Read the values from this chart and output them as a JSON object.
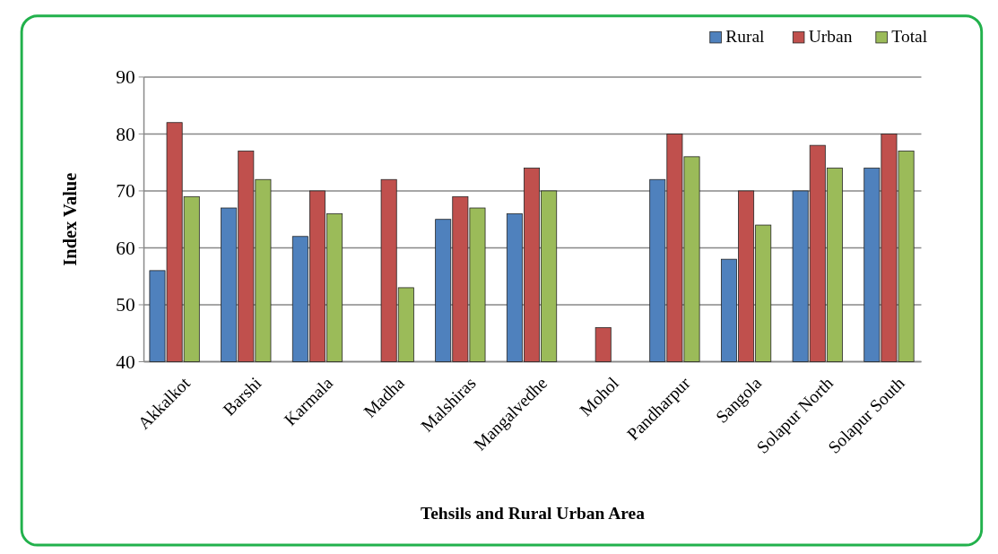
{
  "chart_data": {
    "type": "bar",
    "xlabel": "Tehsils  and Rural Urban Area",
    "ylabel": "Index Value",
    "categories": [
      "Akkalkot",
      "Barshi",
      "Karmala",
      "Madha",
      "Malshiras",
      "Mangalvedhe",
      "Mohol",
      "Pandharpur",
      "Sangola",
      "Solapur North",
      "Solapur South"
    ],
    "series": [
      {
        "name": "Rural",
        "color": "#4f81bd",
        "values": [
          56,
          67,
          62,
          40,
          65,
          66,
          40,
          72,
          58,
          70,
          74
        ]
      },
      {
        "name": "Urban",
        "color": "#c0504d",
        "values": [
          82,
          77,
          70,
          72,
          69,
          74,
          46,
          80,
          70,
          78,
          80
        ]
      },
      {
        "name": "Total",
        "color": "#9bbb59",
        "values": [
          69,
          72,
          66,
          53,
          67,
          70,
          40,
          76,
          64,
          74,
          77
        ]
      }
    ],
    "ylim": [
      40,
      90
    ],
    "yticks": [
      40,
      50,
      60,
      70,
      80,
      90
    ],
    "grid": "y",
    "legend": "top right"
  }
}
